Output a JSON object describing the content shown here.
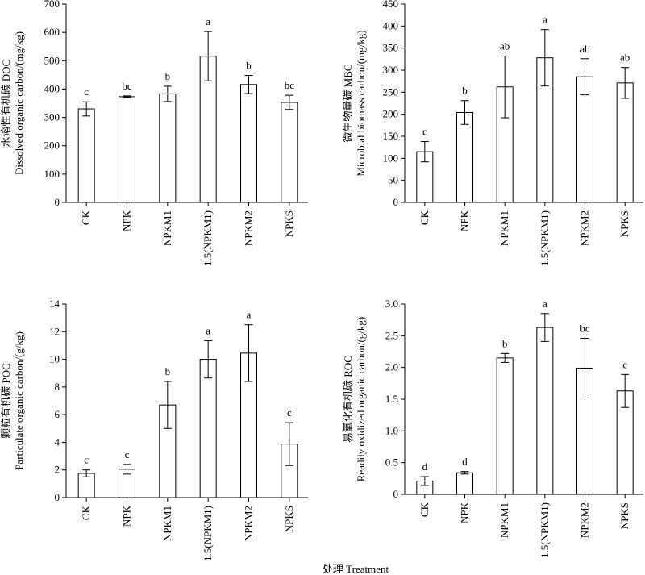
{
  "xlabel": "处理 Treatment",
  "chart_data": [
    {
      "type": "bar",
      "categories": [
        "CK",
        "NPK",
        "NPKM1",
        "1.5(NPKM1)",
        "NPKM2",
        "NPKS"
      ],
      "values": [
        330,
        373,
        383,
        516,
        416,
        353
      ],
      "errors": [
        25,
        3,
        27,
        87,
        32,
        25
      ],
      "significance": [
        "c",
        "bc",
        "b",
        "a",
        "b",
        "bc"
      ],
      "ylabel_cn": "水溶性有机碳 DOC",
      "ylabel_en": "Dissolved organic carbon/(mg/kg)",
      "ylim": [
        0,
        700
      ],
      "yticks": [
        0,
        100,
        200,
        300,
        400,
        500,
        600,
        700
      ],
      "ytick_labels": [
        "0",
        "100",
        "200",
        "300",
        "400",
        "500",
        "600",
        "700"
      ]
    },
    {
      "type": "bar",
      "categories": [
        "CK",
        "NPK",
        "NPKM1",
        "1.5(NPKM1)",
        "NPKM2",
        "NPKS"
      ],
      "values": [
        115,
        204,
        262,
        328,
        285,
        271
      ],
      "errors": [
        23,
        27,
        70,
        64,
        41,
        35
      ],
      "significance": [
        "c",
        "b",
        "ab",
        "a",
        "ab",
        "ab"
      ],
      "ylabel_cn": "微生物量碳 MBC",
      "ylabel_en": "Microbial biomass carbon/(mg/kg)",
      "ylim": [
        0,
        450
      ],
      "yticks": [
        0,
        50,
        100,
        150,
        200,
        250,
        300,
        350,
        400,
        450
      ],
      "ytick_labels": [
        "0",
        "50",
        "100",
        "150",
        "200",
        "250",
        "300",
        "350",
        "400",
        "450"
      ]
    },
    {
      "type": "bar",
      "categories": [
        "CK",
        "NPK",
        "NPKM1",
        "1.5(NPKM1)",
        "NPKM2",
        "NPKS"
      ],
      "values": [
        1.75,
        2.05,
        6.7,
        10.0,
        10.45,
        3.87
      ],
      "errors": [
        0.25,
        0.35,
        1.7,
        1.35,
        2.05,
        1.55
      ],
      "significance": [
        "c",
        "c",
        "b",
        "a",
        "a",
        "c"
      ],
      "ylabel_cn": "颗粒有机碳 POC",
      "ylabel_en": "Particulate organic carbon/(g/kg)",
      "ylim": [
        0,
        14
      ],
      "yticks": [
        0,
        2,
        4,
        6,
        8,
        10,
        12,
        14
      ],
      "ytick_labels": [
        "0",
        "2",
        "4",
        "6",
        "8",
        "10",
        "12",
        "14"
      ]
    },
    {
      "type": "bar",
      "categories": [
        "CK",
        "NPK",
        "NPKM1",
        "1.5(NPKM1)",
        "NPKM2",
        "NPKS"
      ],
      "values": [
        0.21,
        0.34,
        2.15,
        2.63,
        1.99,
        1.63
      ],
      "errors": [
        0.07,
        0.02,
        0.07,
        0.22,
        0.47,
        0.26
      ],
      "significance": [
        "d",
        "d",
        "b",
        "a",
        "bc",
        "c"
      ],
      "ylabel_cn": "易氧化有机碳 ROC",
      "ylabel_en": "Readily oxidized organic carbon/(g/kg)",
      "ylim": [
        0,
        3.0
      ],
      "yticks": [
        0,
        0.5,
        1.0,
        1.5,
        2.0,
        2.5,
        3.0
      ],
      "ytick_labels": [
        "0",
        "0.5",
        "1.0",
        "1.5",
        "2.0",
        "2.5",
        "3.0"
      ]
    }
  ]
}
